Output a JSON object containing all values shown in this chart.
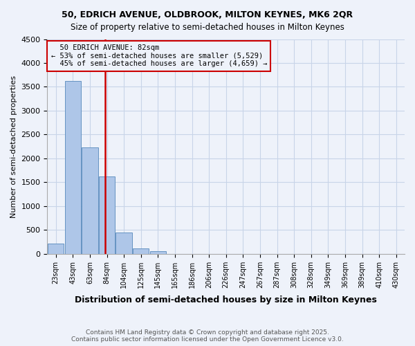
{
  "title1": "50, EDRICH AVENUE, OLDBROOK, MILTON KEYNES, MK6 2QR",
  "title2": "Size of property relative to semi-detached houses in Milton Keynes",
  "xlabel": "Distribution of semi-detached houses by size in Milton Keynes",
  "ylabel": "Number of semi-detached properties",
  "footnote": "Contains HM Land Registry data © Crown copyright and database right 2025.\nContains public sector information licensed under the Open Government Licence v3.0.",
  "bin_labels": [
    "23sqm",
    "43sqm",
    "63sqm",
    "84sqm",
    "104sqm",
    "125sqm",
    "145sqm",
    "165sqm",
    "186sqm",
    "206sqm",
    "226sqm",
    "247sqm",
    "267sqm",
    "287sqm",
    "308sqm",
    "328sqm",
    "349sqm",
    "369sqm",
    "389sqm",
    "410sqm",
    "430sqm"
  ],
  "bar_values": [
    210,
    3620,
    2230,
    1620,
    450,
    110,
    50,
    0,
    0,
    0,
    0,
    0,
    0,
    0,
    0,
    0,
    0,
    0,
    0,
    0
  ],
  "ylim": [
    0,
    4500
  ],
  "property_label": "50 EDRICH AVENUE: 82sqm",
  "pct_smaller": 53,
  "pct_smaller_count": "5,529",
  "pct_larger": 45,
  "pct_larger_count": "4,659",
  "bar_color": "#aec6e8",
  "bar_edge_color": "#5588bb",
  "vline_color": "#cc0000",
  "annotation_box_color": "#cc0000",
  "background_color": "#eef2fa",
  "grid_color": "#c8d4e8"
}
